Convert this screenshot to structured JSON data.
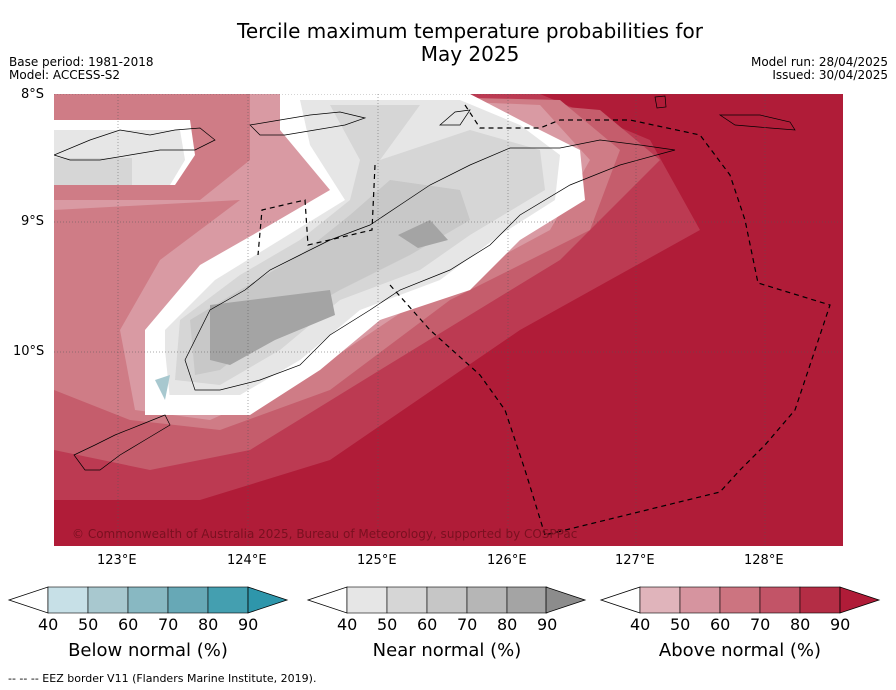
{
  "title_line1": "Tercile maximum temperature probabilities for",
  "title_line2": "May 2025",
  "meta_left": [
    "Base period: 1981-2018",
    "Model: ACCESS-S2"
  ],
  "meta_right": [
    "Model run: 28/04/2025",
    "Issued: 30/04/2025"
  ],
  "lat_labels": [
    "8°S",
    "9°S",
    "10°S"
  ],
  "lon_labels": [
    "123°E",
    "124°E",
    "125°E",
    "126°E",
    "127°E",
    "128°E"
  ],
  "copyright": "© Commonwealth of Australia 2025, Bureau of Meteorology, supported by COSPPac",
  "colorbars": [
    {
      "label": "Below normal (%)",
      "ticks": [
        "40",
        "50",
        "60",
        "70",
        "80",
        "90"
      ],
      "colors": [
        "#c7e0e7",
        "#a8c8cf",
        "#88b8c2",
        "#67a8b6",
        "#449fb0",
        "#2e96ab"
      ]
    },
    {
      "label": "Near normal (%)",
      "ticks": [
        "40",
        "50",
        "60",
        "70",
        "80",
        "90"
      ],
      "colors": [
        "#e6e6e6",
        "#d6d6d6",
        "#c6c6c6",
        "#b6b6b6",
        "#a4a4a4",
        "#8c8c8c"
      ]
    },
    {
      "label": "Above normal (%)",
      "ticks": [
        "40",
        "50",
        "60",
        "70",
        "80",
        "90"
      ],
      "colors": [
        "#e0b4bb",
        "#d6949f",
        "#cc7480",
        "#c25467",
        "#b42d45",
        "#b01c38"
      ]
    }
  ],
  "footnote": "--  --  -- EEZ border V11 (Flanders Marine Institute, 2019).",
  "map_colors": {
    "above90": "#b01c38",
    "above80": "#bc3a52",
    "above70": "#c55d6c",
    "above60": "#cf7c86",
    "above50": "#d99aa3",
    "near40": "#e6e6e6",
    "near50": "#d6d6d6",
    "near60": "#c8c8c8",
    "near70": "#b6b6b6",
    "near80": "#a4a4a4",
    "below50": "#a8c8cf"
  }
}
